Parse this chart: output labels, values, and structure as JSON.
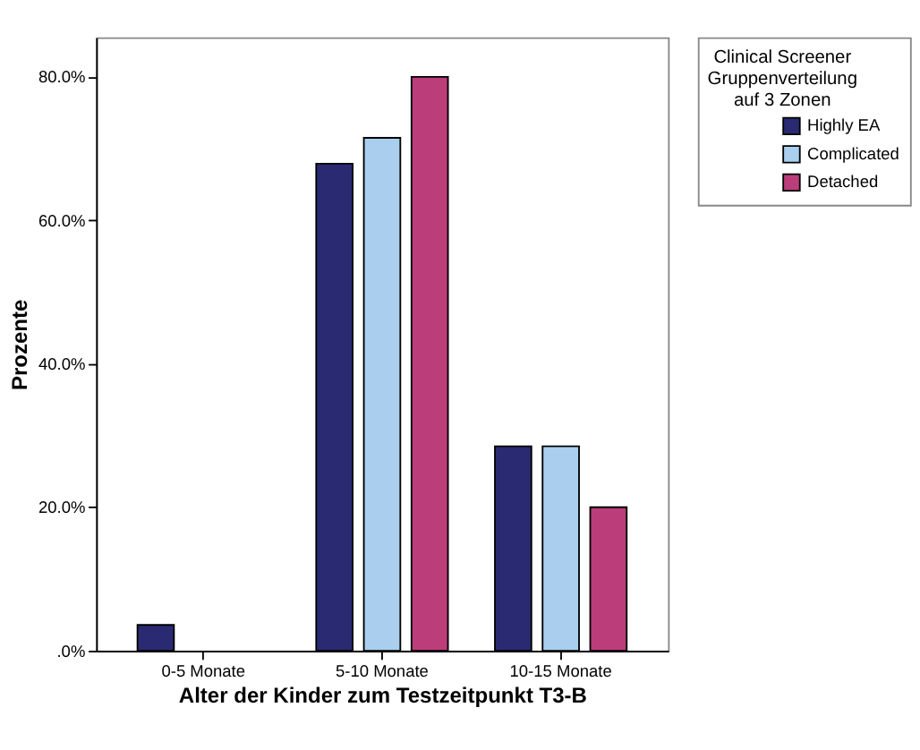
{
  "chart_data": {
    "type": "bar",
    "xlabel": "Alter der Kinder zum Testzeitpunkt T3-B",
    "ylabel": "Prozente",
    "legend_title": "Clinical Screener\nGruppenverteilung\nauf 3 Zonen",
    "categories": [
      "0-5 Monate",
      "5-10 Monate",
      "10-15 Monate"
    ],
    "series": [
      {
        "name": "Highly EA",
        "color": "#2a2a72",
        "values": [
          3.6,
          67.9,
          28.5
        ]
      },
      {
        "name": "Complicated",
        "color": "#aacfee",
        "values": [
          null,
          71.5,
          28.5
        ]
      },
      {
        "name": "Detached",
        "color": "#bb3d7a",
        "values": [
          null,
          80,
          20
        ]
      }
    ],
    "ylim": [
      0,
      85.5
    ],
    "yticks": [
      {
        "value": 0,
        "label": ".0%"
      },
      {
        "value": 20,
        "label": "20.0%"
      },
      {
        "value": 40,
        "label": "40.0%"
      },
      {
        "value": 60,
        "label": "60.0%"
      },
      {
        "value": 80,
        "label": "80.0%"
      }
    ],
    "grid": false,
    "legend": "right"
  }
}
